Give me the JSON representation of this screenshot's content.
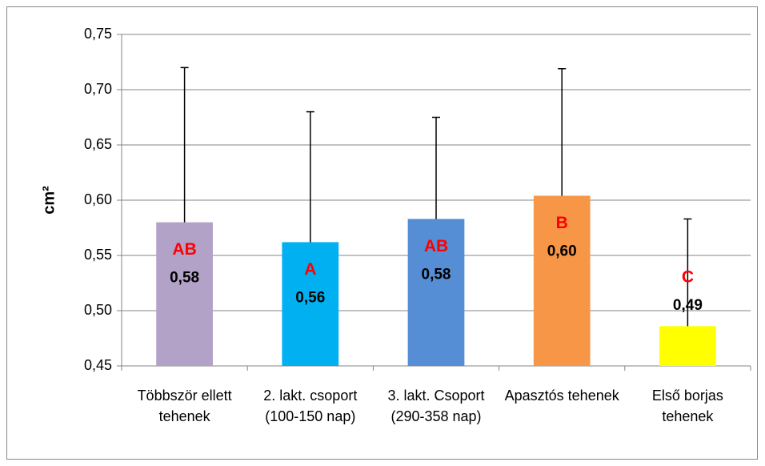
{
  "chart_data": {
    "type": "bar",
    "y_label": "cm²",
    "categories": [
      "Többször ellett tehenek",
      "2. lakt. csoport (100-150 nap)",
      "3. lakt. Csoport (290-358 nap)",
      "Apasztós tehenek",
      "Első borjas tehenek"
    ],
    "values": [
      0.58,
      0.562,
      0.583,
      0.604,
      0.486
    ],
    "value_labels": [
      "0,58",
      "0,56",
      "0,58",
      "0,60",
      "0,49"
    ],
    "errors": [
      0.14,
      0.118,
      0.092,
      0.115,
      0.097
    ],
    "letters": [
      "AB",
      "A",
      "AB",
      "B",
      "C"
    ],
    "colors": [
      "#b3a2c7",
      "#00b0f0",
      "#558ed5",
      "#f79646",
      "#ffff00"
    ],
    "ylim": [
      0.45,
      0.75
    ],
    "yticks": [
      {
        "value": 0.45,
        "label": "0,45"
      },
      {
        "value": 0.5,
        "label": "0,50"
      },
      {
        "value": 0.55,
        "label": "0,55"
      },
      {
        "value": 0.6,
        "label": "0,60"
      },
      {
        "value": 0.65,
        "label": "0,65"
      },
      {
        "value": 0.7,
        "label": "0,70"
      },
      {
        "value": 0.75,
        "label": "0,75"
      }
    ],
    "grid": true
  }
}
